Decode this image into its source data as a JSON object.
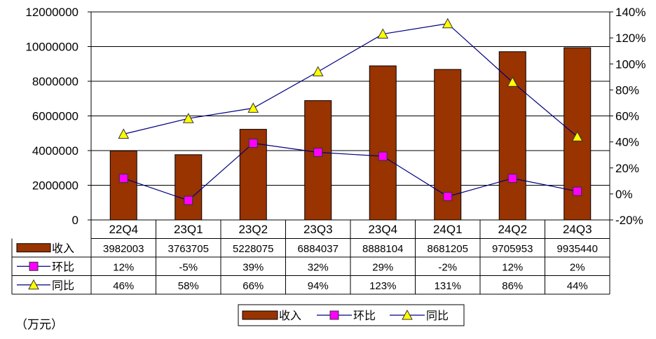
{
  "chart_data": {
    "type": "bar",
    "categories": [
      "22Q4",
      "23Q1",
      "23Q2",
      "23Q3",
      "23Q4",
      "24Q1",
      "24Q2",
      "24Q3"
    ],
    "series": [
      {
        "name": "收入",
        "kind": "bar",
        "axis": "left",
        "values": [
          3982003,
          3763705,
          5228075,
          6884037,
          8888104,
          8681205,
          9705953,
          9935440
        ],
        "color": "#993300"
      },
      {
        "name": "环比",
        "kind": "line",
        "axis": "right",
        "marker": "square",
        "values": [
          12,
          -5,
          39,
          32,
          29,
          -2,
          12,
          2
        ],
        "color": "#ff00ff"
      },
      {
        "name": "同比",
        "kind": "line",
        "axis": "right",
        "marker": "triangle",
        "values": [
          46,
          58,
          66,
          94,
          123,
          131,
          86,
          44
        ],
        "color": "#ffff00"
      }
    ],
    "y_left": {
      "ylim": [
        0,
        12000000
      ],
      "ticks": [
        "0",
        "2000000",
        "4000000",
        "6000000",
        "8000000",
        "10000000",
        "12000000"
      ]
    },
    "y_right": {
      "ylim": [
        -20,
        140
      ],
      "ticks": [
        "-20%",
        "0%",
        "20%",
        "40%",
        "60%",
        "80%",
        "100%",
        "120%",
        "140%"
      ]
    },
    "table": {
      "rows": [
        {
          "name": "收入",
          "cells": [
            "3982003",
            "3763705",
            "5228075",
            "6884037",
            "8888104",
            "8681205",
            "9705953",
            "9935440"
          ]
        },
        {
          "name": "环比",
          "cells": [
            "12%",
            "-5%",
            "39%",
            "32%",
            "29%",
            "-2%",
            "12%",
            "2%"
          ]
        },
        {
          "name": "同比",
          "cells": [
            "46%",
            "58%",
            "66%",
            "94%",
            "123%",
            "131%",
            "86%",
            "44%"
          ]
        }
      ]
    },
    "legend": [
      "收入",
      "环比",
      "同比"
    ],
    "legend_position": "bottom",
    "grid": true,
    "line_color": "#000080",
    "unit_note": "（万元）"
  }
}
